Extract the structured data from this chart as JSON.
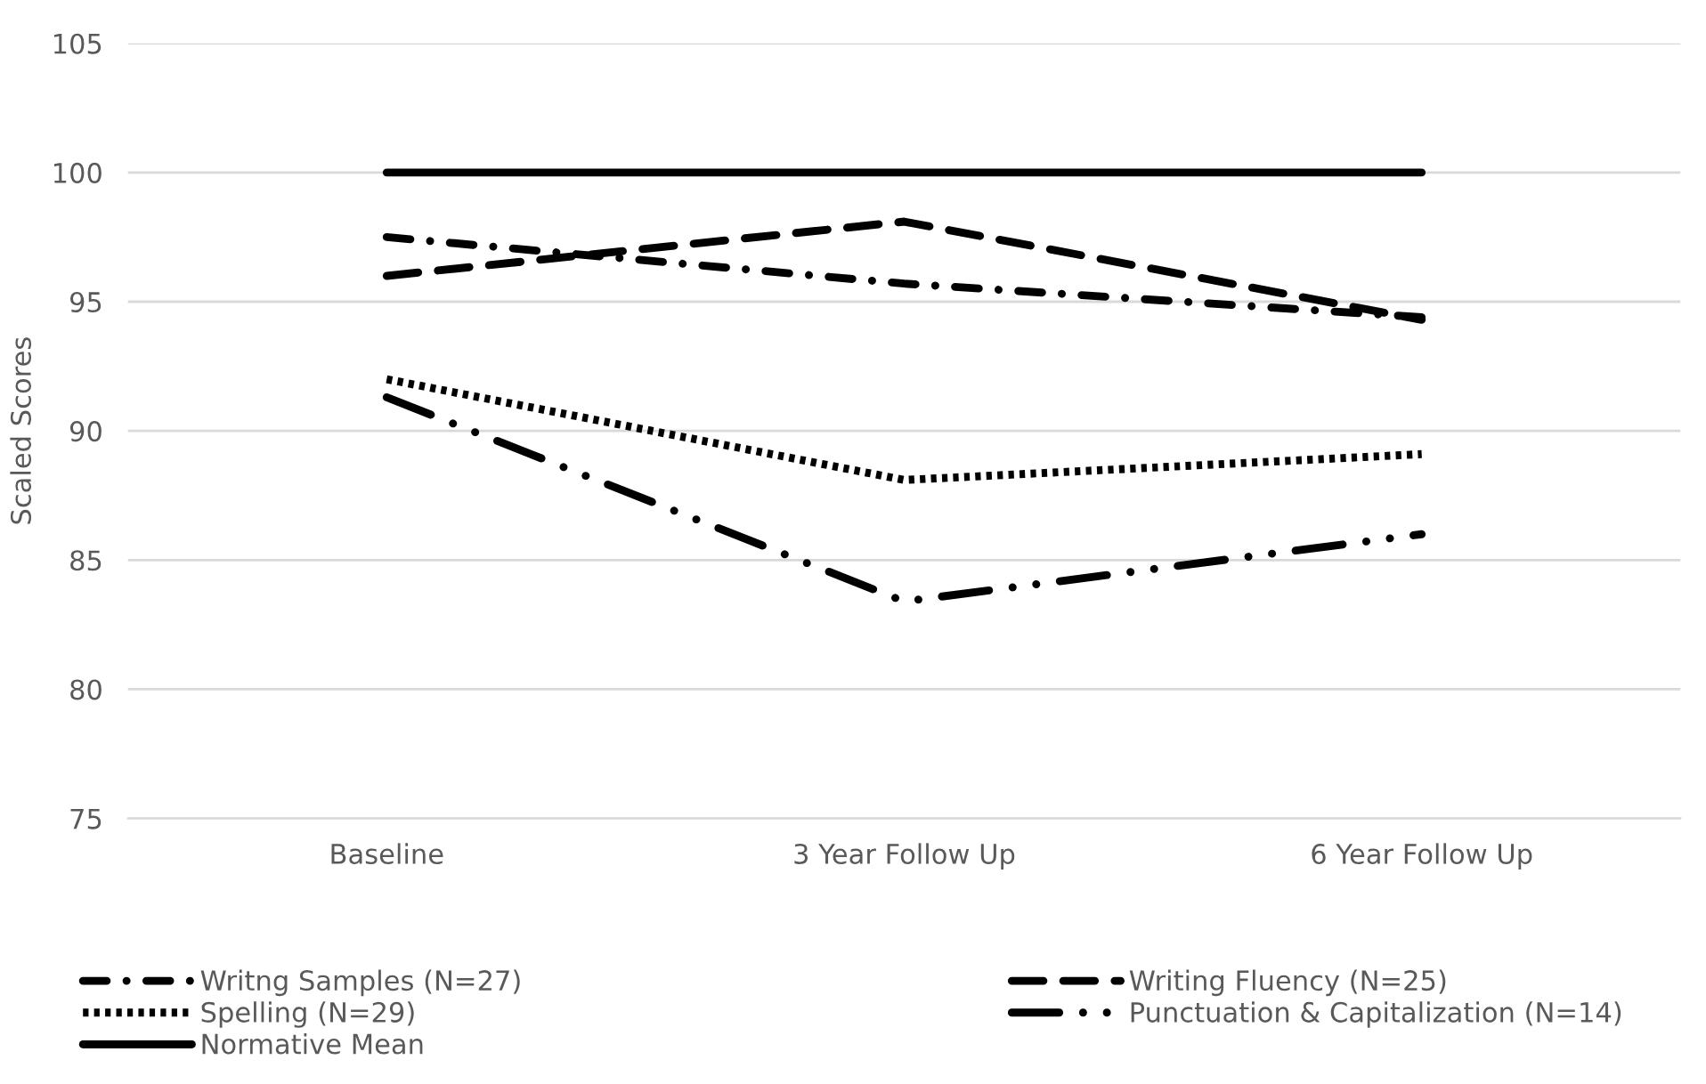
{
  "chart_data": {
    "type": "line",
    "ylabel": "Scaled Scores",
    "categories": [
      "Baseline",
      "3 Year Follow Up",
      "6 Year Follow Up"
    ],
    "series": [
      {
        "name": "Writng Samples (N=27)",
        "color": "#000000",
        "line_style": "dashdot",
        "values": [
          97.5,
          95.7,
          94.4
        ]
      },
      {
        "name": "Writing Fluency (N=25)",
        "color": "#000000",
        "line_style": "dashed",
        "values": [
          96.0,
          98.1,
          94.3
        ]
      },
      {
        "name": "Spelling (N=29)",
        "color": "#000000",
        "line_style": "dotted",
        "values": [
          92.0,
          88.1,
          89.1
        ]
      },
      {
        "name": "Punctuation & Capitalization (N=14)",
        "color": "#000000",
        "line_style": "longdashdot",
        "values": [
          91.3,
          83.4,
          86.0
        ]
      },
      {
        "name": "Normative Mean",
        "color": "#000000",
        "line_style": "solid",
        "values": [
          100,
          100,
          100
        ]
      }
    ],
    "ylim": [
      75,
      105
    ],
    "yticks": [
      75,
      80,
      85,
      90,
      95,
      100,
      105
    ],
    "grid": "y",
    "legend": "bottom",
    "marker": "none"
  }
}
